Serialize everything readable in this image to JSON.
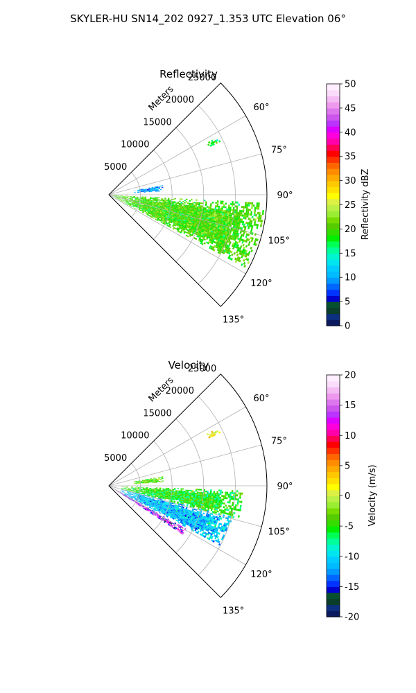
{
  "suptitle": "SKYLER-HU  SN14_202  0927_1.353 UTC Elevation 06°",
  "chart_data": [
    {
      "type": "polar-sector",
      "title": "Reflectivity",
      "radial_axis_label": "Meters",
      "radial_ticks": [
        "5000",
        "10000",
        "15000",
        "20000",
        "25000"
      ],
      "radial_tick_values": [
        5000,
        10000,
        15000,
        20000,
        25000
      ],
      "rmax": 25000,
      "azimuth_ticks": [
        "60°",
        "75°",
        "90°",
        "105°",
        "120°",
        "135°"
      ],
      "azimuth_tick_values": [
        60,
        75,
        90,
        105,
        120,
        135
      ],
      "azimuth_range": [
        45,
        135
      ],
      "grid": true,
      "colorbar": {
        "label": "Reflectivity dBZ",
        "range": [
          0,
          50
        ],
        "ticks": [
          "0",
          "5",
          "10",
          "15",
          "20",
          "25",
          "30",
          "35",
          "40",
          "45",
          "50"
        ],
        "tick_values": [
          0,
          5,
          10,
          15,
          20,
          25,
          30,
          35,
          40,
          45,
          50
        ],
        "colors": [
          "#0b1a5e",
          "#0d2f80",
          "#0a3d2a",
          "#06502e",
          "#0000cc",
          "#0033ff",
          "#0066ff",
          "#0099ff",
          "#00bbff",
          "#00ccff",
          "#00e5f0",
          "#00f5d0",
          "#00ff99",
          "#00ff55",
          "#00ee00",
          "#33dd00",
          "#55cc00",
          "#77dd00",
          "#99ee33",
          "#bbf044",
          "#ddf044",
          "#ffff00",
          "#ffe000",
          "#ffc800",
          "#ffaa00",
          "#ff8c00",
          "#ff6600",
          "#ff3300",
          "#ff0000",
          "#ff0055",
          "#ff00aa",
          "#ff00dd",
          "#dd00ff",
          "#bb33ff",
          "#cc55ee",
          "#dd77ee",
          "#ee99ee",
          "#f4bbf4",
          "#fadcfa",
          "#ffeeff"
        ]
      },
      "features": [
        {
          "name": "main echo band",
          "az_range": [
            93,
            118
          ],
          "range_m": [
            500,
            24500
          ],
          "typical_value": 20
        },
        {
          "name": "north cluster",
          "az_range": [
            80,
            86
          ],
          "range_m": [
            4000,
            8500
          ],
          "typical_value": 10
        },
        {
          "name": "distant streak",
          "az_range": [
            62,
            64
          ],
          "range_m": [
            17500,
            19500
          ],
          "typical_value": 18
        }
      ]
    },
    {
      "type": "polar-sector",
      "title": "Velocity",
      "radial_axis_label": "Meters",
      "radial_ticks": [
        "5000",
        "10000",
        "15000",
        "20000",
        "25000"
      ],
      "radial_tick_values": [
        5000,
        10000,
        15000,
        20000,
        25000
      ],
      "rmax": 25000,
      "azimuth_ticks": [
        "60°",
        "75°",
        "90°",
        "105°",
        "120°",
        "135°"
      ],
      "azimuth_tick_values": [
        60,
        75,
        90,
        105,
        120,
        135
      ],
      "azimuth_range": [
        45,
        135
      ],
      "grid": true,
      "colorbar": {
        "label": "Velocity (m/s)",
        "range": [
          -20,
          20
        ],
        "ticks": [
          "-20",
          "-15",
          "-10",
          "-5",
          "0",
          "5",
          "10",
          "15",
          "20"
        ],
        "tick_values": [
          -20,
          -15,
          -10,
          -5,
          0,
          5,
          10,
          15,
          20
        ],
        "colors": [
          "#0b1a5e",
          "#0d2f80",
          "#0a3d2a",
          "#06502e",
          "#0000cc",
          "#0033ff",
          "#0066ff",
          "#0099ff",
          "#00bbff",
          "#00ccff",
          "#00e5f0",
          "#00f5d0",
          "#00ff99",
          "#00ff55",
          "#00ee00",
          "#33dd00",
          "#55cc00",
          "#77dd00",
          "#99ee33",
          "#bbf044",
          "#ddf044",
          "#ffff00",
          "#ffe000",
          "#ffc800",
          "#ffaa00",
          "#ff8c00",
          "#ff6600",
          "#ff3300",
          "#ff0000",
          "#ff0055",
          "#ff00aa",
          "#ff00dd",
          "#dd00ff",
          "#bb33ff",
          "#cc55ee",
          "#dd77ee",
          "#ee99ee",
          "#f4bbf4",
          "#fadcfa",
          "#ffeeff"
        ]
      },
      "features": [
        {
          "name": "receding band",
          "az_range": [
            92,
            104
          ],
          "range_m": [
            2000,
            21000
          ],
          "typical_value": -5
        },
        {
          "name": "approaching core",
          "az_range": [
            104,
            118
          ],
          "range_m": [
            2000,
            20000
          ],
          "typical_value": -11
        },
        {
          "name": "folded edge",
          "az_range": [
            119,
            123
          ],
          "range_m": [
            500,
            14000
          ],
          "typical_value": 14
        },
        {
          "name": "north cluster",
          "az_range": [
            80,
            86
          ],
          "range_m": [
            4000,
            8500
          ],
          "typical_value": -3
        },
        {
          "name": "distant streak",
          "az_range": [
            62,
            64
          ],
          "range_m": [
            17500,
            19500
          ],
          "typical_value": 2
        }
      ]
    }
  ]
}
